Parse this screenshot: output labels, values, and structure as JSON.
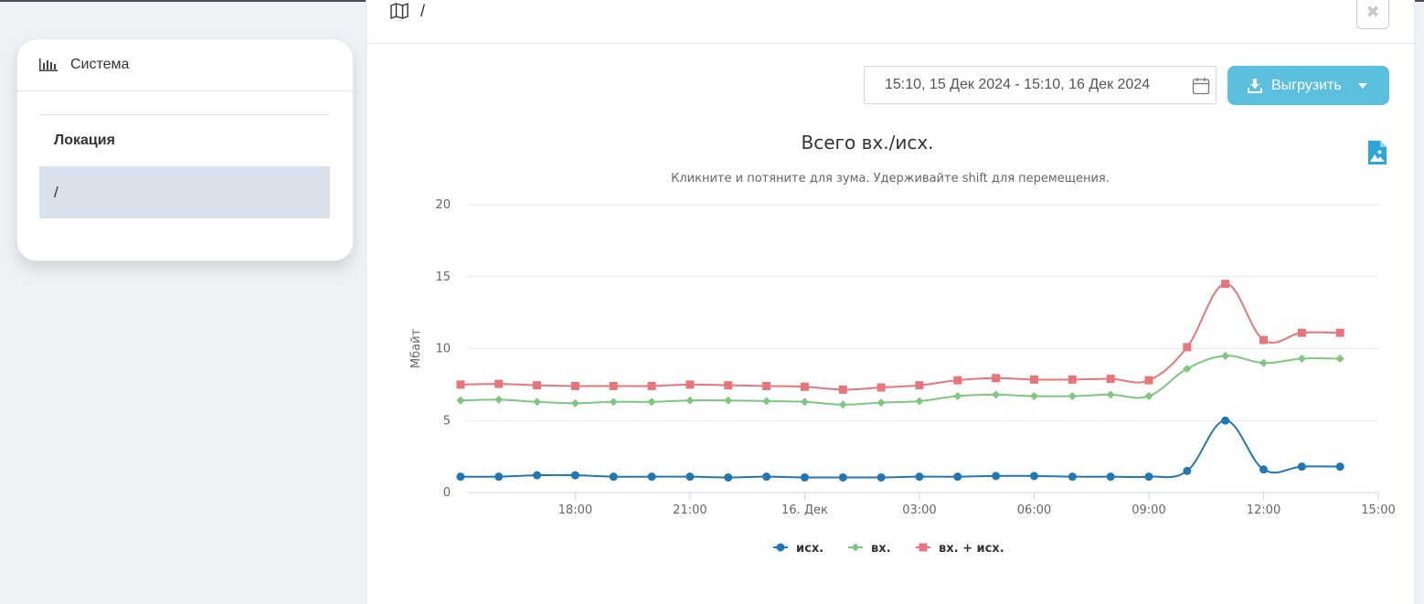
{
  "sidebar": {
    "header_label": "Система",
    "table_header": "Локация",
    "rows": [
      "/"
    ]
  },
  "main": {
    "breadcrumb": "/",
    "close_label": "✖",
    "date_range": "15:10, 15 Дек 2024 - 15:10, 16 Дек 2024",
    "export_label": "Выгрузить"
  },
  "colors": {
    "accent": "#5bc0de",
    "series_out": "#1f77b4",
    "series_in": "#7dc77f",
    "series_sum": "#e8757a",
    "selected_row": "#d9e2ec"
  },
  "icons": [
    "chart-bar-icon",
    "map-icon",
    "close-icon",
    "calendar-icon",
    "download-icon",
    "caret-down-icon",
    "image-export-icon"
  ],
  "chart_data": {
    "type": "line",
    "title": "Всего вх./исх.",
    "subtitle": "Кликните и потяните для зума. Удерживайте shift для перемещения.",
    "ylabel": "Мбайт",
    "ylim": [
      0,
      20
    ],
    "yticks": [
      0,
      5,
      10,
      15,
      20
    ],
    "x_range": [
      15.17,
      39.0
    ],
    "xticks": [
      {
        "x": 18,
        "label": "18:00"
      },
      {
        "x": 21,
        "label": "21:00"
      },
      {
        "x": 24,
        "label": "16. Дек"
      },
      {
        "x": 27,
        "label": "03:00"
      },
      {
        "x": 30,
        "label": "06:00"
      },
      {
        "x": 33,
        "label": "09:00"
      },
      {
        "x": 36,
        "label": "12:00"
      },
      {
        "x": 39,
        "label": "15:00"
      }
    ],
    "x": [
      15,
      16,
      17,
      18,
      19,
      20,
      21,
      22,
      23,
      24,
      25,
      26,
      27,
      28,
      29,
      30,
      31,
      32,
      33,
      34,
      35,
      36,
      37,
      38
    ],
    "series": [
      {
        "name": "исх.",
        "marker": "circle",
        "values": [
          1.1,
          1.1,
          1.2,
          1.2,
          1.1,
          1.1,
          1.1,
          1.05,
          1.1,
          1.05,
          1.05,
          1.05,
          1.1,
          1.1,
          1.15,
          1.15,
          1.1,
          1.1,
          1.1,
          1.5,
          5.0,
          1.6,
          1.8,
          1.8
        ]
      },
      {
        "name": "вх.",
        "marker": "diamond",
        "values": [
          6.4,
          6.45,
          6.3,
          6.2,
          6.3,
          6.3,
          6.4,
          6.4,
          6.35,
          6.3,
          6.1,
          6.25,
          6.35,
          6.7,
          6.8,
          6.7,
          6.7,
          6.8,
          6.7,
          8.6,
          9.5,
          9.0,
          9.3,
          9.3
        ]
      },
      {
        "name": "вх. + исх.",
        "marker": "square",
        "values": [
          7.5,
          7.55,
          7.45,
          7.4,
          7.4,
          7.4,
          7.5,
          7.45,
          7.4,
          7.35,
          7.15,
          7.3,
          7.45,
          7.8,
          7.95,
          7.85,
          7.85,
          7.9,
          7.8,
          10.1,
          14.5,
          10.6,
          11.1,
          11.1
        ]
      }
    ],
    "grid": true,
    "legend": "bottom-center"
  }
}
